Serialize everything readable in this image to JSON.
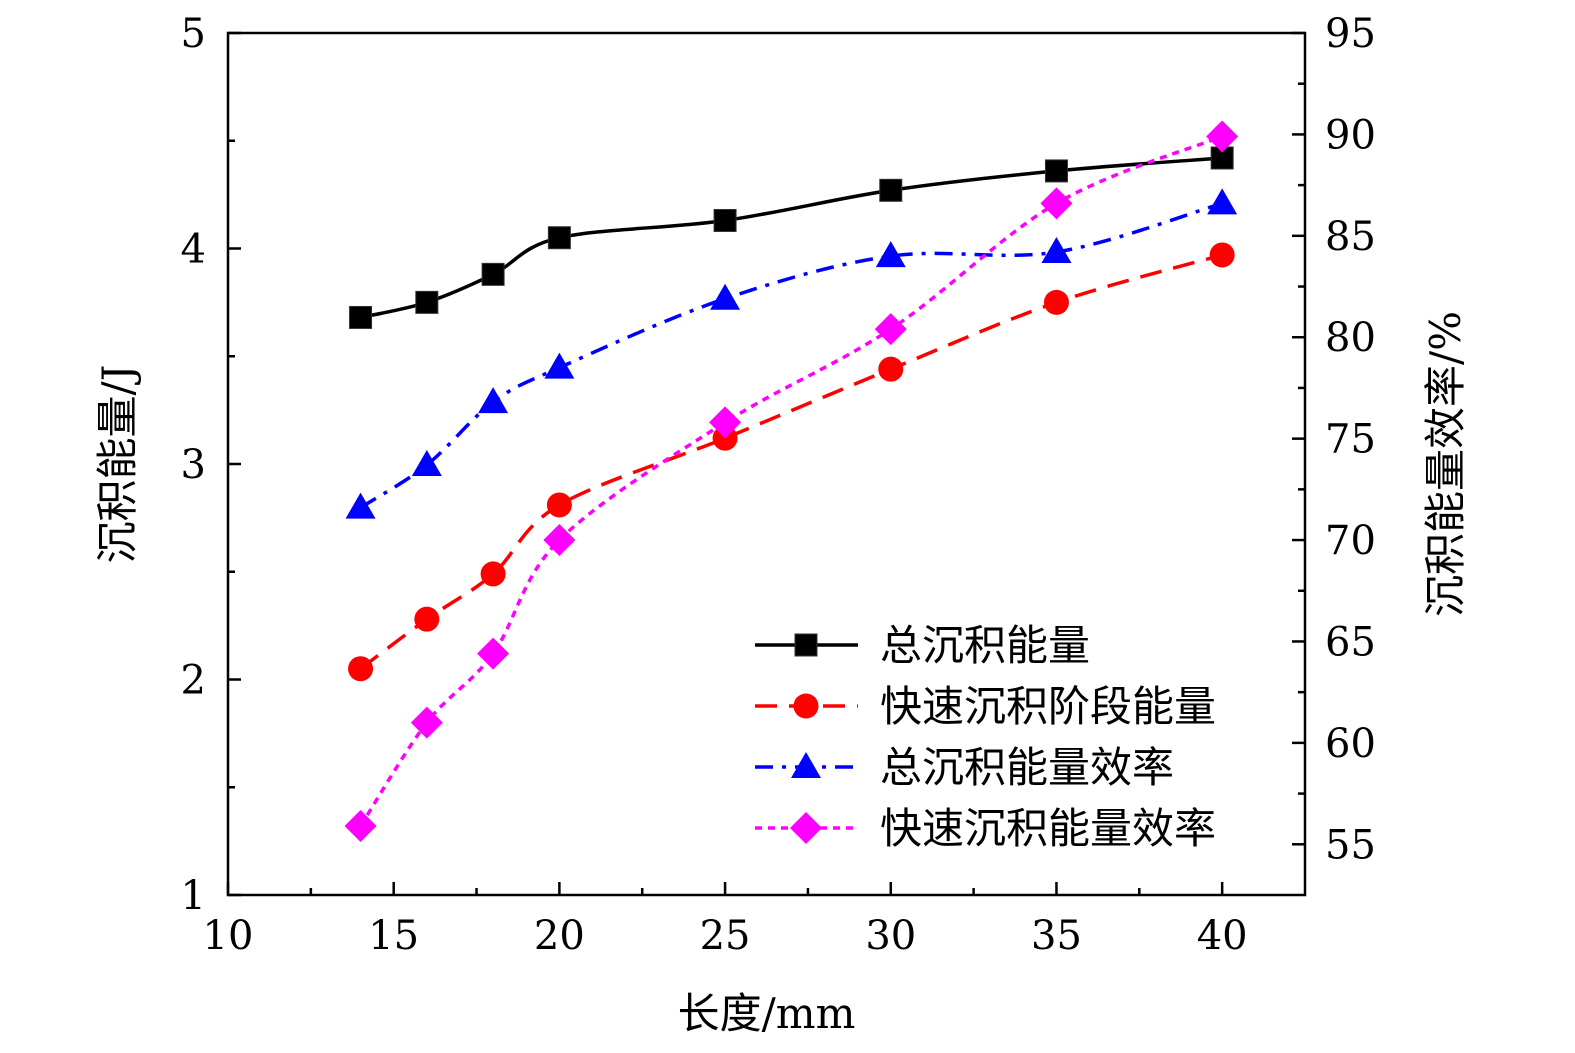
{
  "chart_data": {
    "type": "line",
    "xlabel": "长度/mm",
    "ylabel_left": "沉积能量/J",
    "ylabel_right": "沉积能量效率/%",
    "x_ticks": [
      "10",
      "15",
      "20",
      "25",
      "30",
      "35",
      "40"
    ],
    "y_left_ticks": [
      "1",
      "2",
      "3",
      "4",
      "5"
    ],
    "y_right_ticks": [
      "55",
      "60",
      "65",
      "70",
      "75",
      "80",
      "85",
      "90",
      "95"
    ],
    "xlim": [
      10,
      42.5
    ],
    "ylim_left": [
      1,
      5
    ],
    "ylim_right": [
      52.5,
      95
    ],
    "grid": false,
    "legend_position": "bottom-right",
    "x": [
      14,
      16,
      18,
      20,
      25,
      30,
      35,
      40
    ],
    "series": [
      {
        "name": "总沉积能量",
        "axis": "left",
        "color": "#000000",
        "marker": "square",
        "line_style": "solid",
        "values": [
          3.68,
          3.75,
          3.88,
          4.05,
          4.13,
          4.27,
          4.36,
          4.42
        ]
      },
      {
        "name": "快速沉积阶段能量",
        "axis": "left",
        "color": "#ff0000",
        "marker": "circle",
        "line_style": "dash",
        "values": [
          2.05,
          2.28,
          2.49,
          2.81,
          3.12,
          3.44,
          3.75,
          3.97
        ]
      },
      {
        "name": "总沉积能量效率",
        "axis": "right",
        "color": "#0000ff",
        "marker": "triangle",
        "line_style": "dashdot",
        "values": [
          71.6,
          73.7,
          76.8,
          78.5,
          81.9,
          84.0,
          84.2,
          86.6
        ]
      },
      {
        "name": "快速沉积能量效率",
        "axis": "right",
        "color": "#ff00ff",
        "marker": "diamond",
        "line_style": "dot",
        "values": [
          55.9,
          61.0,
          64.4,
          70.0,
          75.8,
          80.4,
          86.6,
          89.9
        ]
      }
    ]
  }
}
